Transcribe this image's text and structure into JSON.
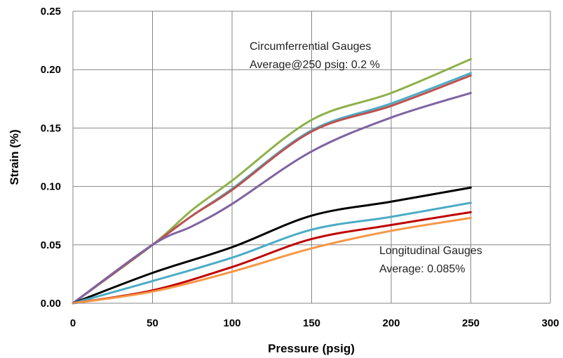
{
  "chart_data": {
    "type": "line",
    "title": "",
    "xlabel": "Pressure (psig)",
    "ylabel": "Strain (%)",
    "xlim": [
      0,
      300
    ],
    "ylim": [
      0,
      0.25
    ],
    "x_ticks": [
      "0",
      "50",
      "100",
      "150",
      "200",
      "250",
      "300"
    ],
    "y_ticks": [
      "0.00",
      "0.05",
      "0.10",
      "0.15",
      "0.20",
      "0.25"
    ],
    "grid": true,
    "legend": "none",
    "annotations": [
      {
        "line1": "Circumferrential Gauges",
        "line2": "Average@250 psig:  0.2 %"
      },
      {
        "line1": "Longitudinal Gauges",
        "line2": "Average:   0.085%"
      }
    ],
    "series": [
      {
        "color": "#8db04a",
        "x": [
          0,
          50,
          75,
          100,
          150,
          200,
          250
        ],
        "y": [
          0,
          0.05,
          0.08,
          0.105,
          0.157,
          0.18,
          0.209
        ]
      },
      {
        "color": "#4bacc6",
        "x": [
          0,
          50,
          75,
          100,
          150,
          200,
          250
        ],
        "y": [
          0,
          0.05,
          0.075,
          0.098,
          0.148,
          0.171,
          0.197
        ]
      },
      {
        "color": "#c0504d",
        "x": [
          0,
          50,
          75,
          100,
          150,
          200,
          250
        ],
        "y": [
          0,
          0.05,
          0.075,
          0.097,
          0.147,
          0.169,
          0.195
        ]
      },
      {
        "color": "#7f63a1",
        "x": [
          0,
          50,
          75,
          100,
          150,
          200,
          250
        ],
        "y": [
          0,
          0.05,
          0.066,
          0.085,
          0.13,
          0.159,
          0.18
        ]
      },
      {
        "color": "#000000",
        "x": [
          0,
          50,
          100,
          150,
          200,
          250
        ],
        "y": [
          0,
          0.026,
          0.048,
          0.075,
          0.087,
          0.099
        ]
      },
      {
        "color": "#4bacc6",
        "x": [
          0,
          50,
          100,
          150,
          200,
          250
        ],
        "y": [
          0,
          0.019,
          0.039,
          0.063,
          0.074,
          0.086
        ]
      },
      {
        "color": "#c00000",
        "x": [
          0,
          50,
          100,
          150,
          200,
          250
        ],
        "y": [
          0,
          0.011,
          0.031,
          0.055,
          0.067,
          0.078
        ]
      },
      {
        "color": "#f79646",
        "x": [
          0,
          50,
          100,
          150,
          200,
          250
        ],
        "y": [
          0,
          0.01,
          0.027,
          0.047,
          0.062,
          0.073
        ]
      }
    ]
  }
}
